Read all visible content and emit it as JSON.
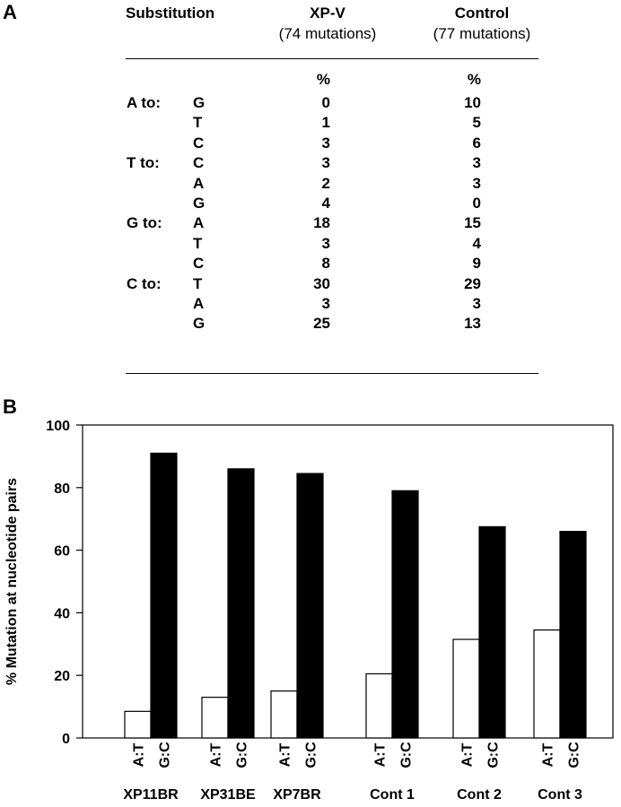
{
  "panel_a": {
    "letter": "A",
    "header": {
      "substitution": "Substitution",
      "xpv_name": "XP-V",
      "xpv_count": "(74 mutations)",
      "control_name": "Control",
      "control_count": "(77 mutations)"
    },
    "unit_xpv": "%",
    "unit_control": "%",
    "rows": [
      {
        "from": "A to:",
        "to": "G",
        "xpv": "0",
        "control": "10"
      },
      {
        "from": "",
        "to": "T",
        "xpv": "1",
        "control": "5"
      },
      {
        "from": "",
        "to": "C",
        "xpv": "3",
        "control": "6"
      },
      {
        "from": "T to:",
        "to": "C",
        "xpv": "3",
        "control": "3"
      },
      {
        "from": "",
        "to": "A",
        "xpv": "2",
        "control": "3"
      },
      {
        "from": "",
        "to": "G",
        "xpv": "4",
        "control": "0"
      },
      {
        "from": "G to:",
        "to": "A",
        "xpv": "18",
        "control": "15"
      },
      {
        "from": "",
        "to": "T",
        "xpv": "3",
        "control": "4"
      },
      {
        "from": "",
        "to": "C",
        "xpv": "8",
        "control": "9"
      },
      {
        "from": "C to:",
        "to": "T",
        "xpv": "30",
        "control": "29"
      },
      {
        "from": "",
        "to": "A",
        "xpv": "3",
        "control": "3"
      },
      {
        "from": "",
        "to": "G",
        "xpv": "25",
        "control": "13"
      }
    ]
  },
  "panel_b": {
    "letter": "B"
  },
  "chart_data": {
    "type": "bar",
    "title": "",
    "ylabel": "% Mutation at nucleotide pairs",
    "xlabel": "",
    "ylim": [
      0,
      100
    ],
    "yticks": [
      0,
      20,
      40,
      60,
      80,
      100
    ],
    "categories": [
      "XP11BR",
      "XP31BE",
      "XP7BR",
      "Cont 1",
      "Cont 2",
      "Cont 3"
    ],
    "series": [
      {
        "name": "A:T",
        "color": "#ffffff",
        "values": [
          8.5,
          13,
          15,
          20.5,
          31.5,
          34.5
        ]
      },
      {
        "name": "G:C",
        "color": "#000000",
        "values": [
          91,
          86,
          84.5,
          79,
          67.5,
          66
        ]
      }
    ],
    "legend": "none",
    "grid": false
  }
}
